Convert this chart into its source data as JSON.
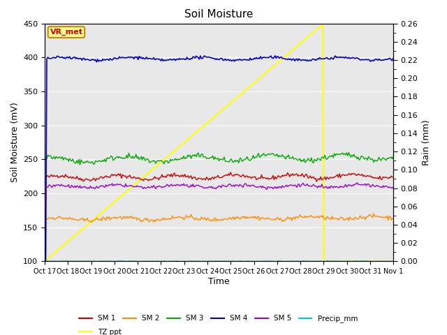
{
  "title": "Soil Moisture",
  "xlabel": "Time",
  "ylabel_left": "Soil Moisture (mV)",
  "ylabel_right": "Rain (mm)",
  "ylim_left": [
    100,
    450
  ],
  "ylim_right": [
    0.0,
    0.26
  ],
  "yticks_left": [
    100,
    150,
    200,
    250,
    300,
    350,
    400,
    450
  ],
  "yticks_right": [
    0.0,
    0.02,
    0.04,
    0.06,
    0.08,
    0.1,
    0.12,
    0.14,
    0.16,
    0.18,
    0.2,
    0.22,
    0.24,
    0.26
  ],
  "x_labels": [
    "Oct 17",
    "Oct 18",
    "Oct 19",
    "Oct 20",
    "Oct 21",
    "Oct 22",
    "Oct 23",
    "Oct 24",
    "Oct 25",
    "Oct 26",
    "Oct 27",
    "Oct 28",
    "Oct 29",
    "Oct 30",
    "Oct 31",
    "Nov 1"
  ],
  "n_points": 337,
  "sm1_base": 223,
  "sm2_base": 162,
  "sm3_base": 249,
  "sm4_stable": 398,
  "sm5_base": 210,
  "colors": {
    "sm1": "#cc0000",
    "sm2": "#ff8c00",
    "sm3": "#00aa00",
    "sm4": "#0000cc",
    "sm5": "#9900cc",
    "precip": "#00cccc",
    "tz_ppt": "#ffff00",
    "background": "#e8e8e8"
  },
  "vr_met_text": "VR_met",
  "vr_met_color": "#cc0000",
  "vr_met_bg": "#ffff99",
  "vr_met_border": "#cc8800",
  "legend_row1": [
    "SM 1",
    "SM 2",
    "SM 3",
    "SM 4",
    "SM 5",
    "Precip_mm"
  ],
  "legend_row2": [
    "TZ ppt"
  ]
}
